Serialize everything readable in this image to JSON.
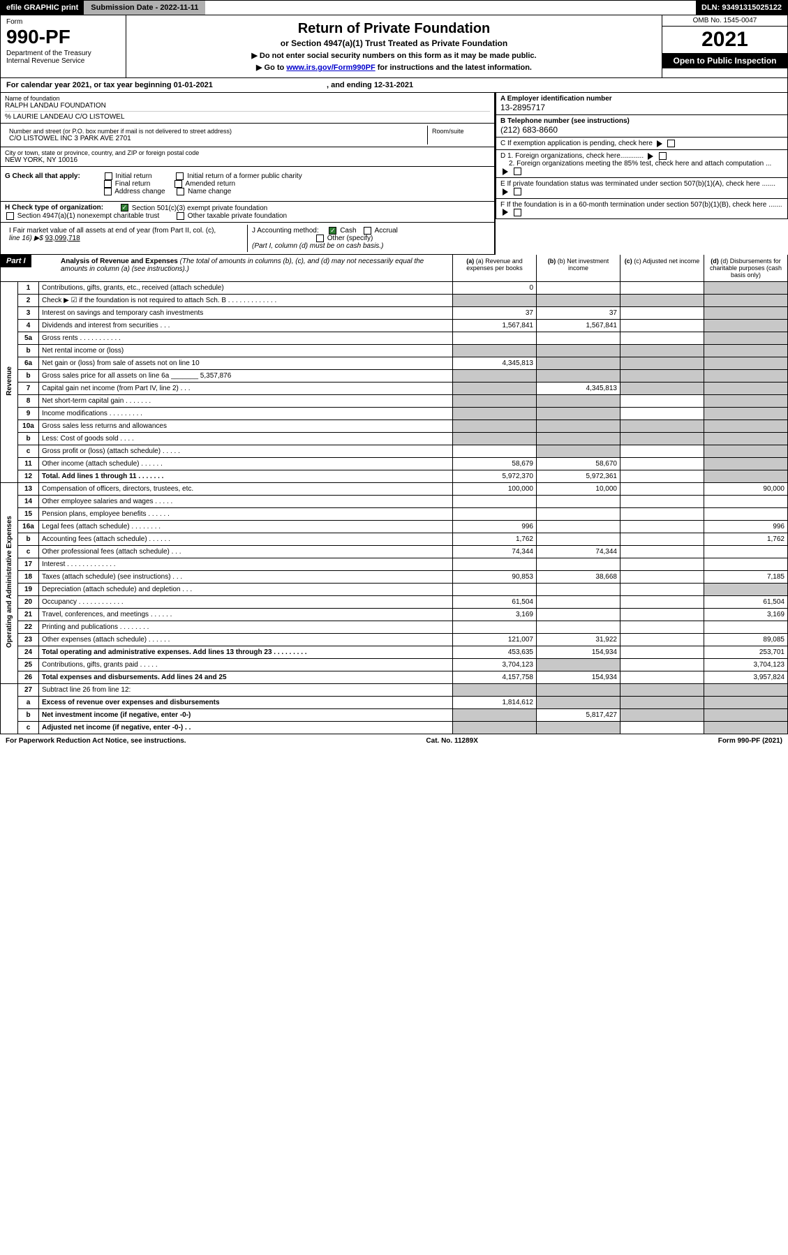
{
  "topbar": {
    "efile": "efile GRAPHIC print",
    "sub_label": "Submission Date - 2022-11-11",
    "dln": "DLN: 93491315025122"
  },
  "header": {
    "form_label": "Form",
    "form_num": "990-PF",
    "dept": "Department of the Treasury\nInternal Revenue Service",
    "title": "Return of Private Foundation",
    "sub": "or Section 4947(a)(1) Trust Treated as Private Foundation",
    "note1": "▶ Do not enter social security numbers on this form as it may be made public.",
    "note2_pre": "▶ Go to ",
    "note2_link": "www.irs.gov/Form990PF",
    "note2_post": " for instructions and the latest information.",
    "omb": "OMB No. 1545-0047",
    "year": "2021",
    "open": "Open to Public Inspection"
  },
  "cal": {
    "text": "For calendar year 2021, or tax year beginning 01-01-2021",
    "ending": ", and ending 12-31-2021"
  },
  "info": {
    "name_lbl": "Name of foundation",
    "name": "RALPH LANDAU FOUNDATION",
    "care": "% LAURIE LANDEAU C/O LISTOWEL",
    "addr_lbl": "Number and street (or P.O. box number if mail is not delivered to street address)",
    "addr": "C/O LISTOWEL INC 3 PARK AVE 2701",
    "room_lbl": "Room/suite",
    "city_lbl": "City or town, state or province, country, and ZIP or foreign postal code",
    "city": "NEW YORK, NY  10016",
    "ein_lbl": "A Employer identification number",
    "ein": "13-2895717",
    "tel_lbl": "B Telephone number (see instructions)",
    "tel": "(212) 683-8660",
    "c_lbl": "C If exemption application is pending, check here",
    "d1": "D 1. Foreign organizations, check here............",
    "d2": "2. Foreign organizations meeting the 85% test, check here and attach computation ...",
    "e": "E If private foundation status was terminated under section 507(b)(1)(A), check here .......",
    "f": "F If the foundation is in a 60-month termination under section 507(b)(1)(B), check here .......",
    "g_lbl": "G Check all that apply:",
    "g_opts": [
      "Initial return",
      "Final return",
      "Address change",
      "Initial return of a former public charity",
      "Amended return",
      "Name change"
    ],
    "h_lbl": "H Check type of organization:",
    "h1": "Section 501(c)(3) exempt private foundation",
    "h2": "Section 4947(a)(1) nonexempt charitable trust",
    "h3": "Other taxable private foundation",
    "i_lbl": "I Fair market value of all assets at end of year (from Part II, col. (c),",
    "i_line": "line 16) ▶$",
    "i_val": "93,099,718",
    "j_lbl": "J Accounting method:",
    "j_cash": "Cash",
    "j_acc": "Accrual",
    "j_other": "Other (specify)",
    "j_note": "(Part I, column (d) must be on cash basis.)"
  },
  "part1": {
    "hdr": "Part I",
    "title": "Analysis of Revenue and Expenses",
    "title_note": "(The total of amounts in columns (b), (c), and (d) may not necessarily equal the amounts in column (a) (see instructions).)",
    "cols": {
      "a": "(a) Revenue and expenses per books",
      "b": "(b) Net investment income",
      "c": "(c) Adjusted net income",
      "d": "(d) Disbursements for charitable purposes (cash basis only)"
    }
  },
  "sections": {
    "rev": "Revenue",
    "exp": "Operating and Administrative Expenses"
  },
  "rows": [
    {
      "ln": "1",
      "desc": "Contributions, gifts, grants, etc., received (attach schedule)",
      "a": "0",
      "b": "",
      "c": "",
      "d": "",
      "sect": "rev",
      "shade_d": true
    },
    {
      "ln": "2",
      "desc": "Check ▶ ☑ if the foundation is not required to attach Sch. B   .   .   .   .   .   .   .   .   .   .   .   .   .",
      "shade_all": true,
      "sect": "rev"
    },
    {
      "ln": "3",
      "desc": "Interest on savings and temporary cash investments",
      "a": "37",
      "b": "37",
      "c": "",
      "d": "",
      "sect": "rev",
      "shade_d": true
    },
    {
      "ln": "4",
      "desc": "Dividends and interest from securities   .   .   .",
      "a": "1,567,841",
      "b": "1,567,841",
      "c": "",
      "d": "",
      "sect": "rev",
      "shade_d": true
    },
    {
      "ln": "5a",
      "desc": "Gross rents   .   .   .   .   .   .   .   .   .   .   .",
      "a": "",
      "b": "",
      "c": "",
      "d": "",
      "sect": "rev",
      "shade_d": true
    },
    {
      "ln": "b",
      "desc": "Net rental income or (loss)",
      "shade_all": true,
      "sect": "rev"
    },
    {
      "ln": "6a",
      "desc": "Net gain or (loss) from sale of assets not on line 10",
      "a": "4,345,813",
      "b": "",
      "c": "",
      "d": "",
      "sect": "rev",
      "shade_bcd": true
    },
    {
      "ln": "b",
      "desc": "Gross sales price for all assets on line 6a _______ 5,357,876",
      "shade_all": true,
      "sect": "rev"
    },
    {
      "ln": "7",
      "desc": "Capital gain net income (from Part IV, line 2)   .   .   .",
      "a": "",
      "b": "4,345,813",
      "c": "",
      "d": "",
      "sect": "rev",
      "shade_a": true,
      "shade_cd": true
    },
    {
      "ln": "8",
      "desc": "Net short-term capital gain   .   .   .   .   .   .   .",
      "shade_abd": true,
      "sect": "rev"
    },
    {
      "ln": "9",
      "desc": "Income modifications   .   .   .   .   .   .   .   .   .",
      "shade_abd": true,
      "sect": "rev"
    },
    {
      "ln": "10a",
      "desc": "Gross sales less returns and allowances",
      "shade_all": true,
      "sect": "rev"
    },
    {
      "ln": "b",
      "desc": "Less: Cost of goods sold   .   .   .   .",
      "shade_all": true,
      "sect": "rev"
    },
    {
      "ln": "c",
      "desc": "Gross profit or (loss) (attach schedule)   .   .   .   .   .",
      "a": "",
      "b": "",
      "c": "",
      "d": "",
      "sect": "rev",
      "shade_bd": true
    },
    {
      "ln": "11",
      "desc": "Other income (attach schedule)   .   .   .   .   .   .",
      "a": "58,679",
      "b": "58,670",
      "c": "",
      "d": "",
      "sect": "rev",
      "shade_d": true
    },
    {
      "ln": "12",
      "desc": "Total. Add lines 1 through 11   .   .   .   .   .   .   .",
      "a": "5,972,370",
      "b": "5,972,361",
      "c": "",
      "d": "",
      "sect": "rev",
      "bold": true,
      "shade_d": true
    },
    {
      "ln": "13",
      "desc": "Compensation of officers, directors, trustees, etc.",
      "a": "100,000",
      "b": "10,000",
      "c": "",
      "d": "90,000",
      "sect": "exp"
    },
    {
      "ln": "14",
      "desc": "Other employee salaries and wages   .   .   .   .   .",
      "a": "",
      "b": "",
      "c": "",
      "d": "",
      "sect": "exp"
    },
    {
      "ln": "15",
      "desc": "Pension plans, employee benefits   .   .   .   .   .   .",
      "a": "",
      "b": "",
      "c": "",
      "d": "",
      "sect": "exp"
    },
    {
      "ln": "16a",
      "desc": "Legal fees (attach schedule)   .   .   .   .   .   .   .   .",
      "a": "996",
      "b": "",
      "c": "",
      "d": "996",
      "sect": "exp"
    },
    {
      "ln": "b",
      "desc": "Accounting fees (attach schedule)   .   .   .   .   .   .",
      "a": "1,762",
      "b": "",
      "c": "",
      "d": "1,762",
      "sect": "exp"
    },
    {
      "ln": "c",
      "desc": "Other professional fees (attach schedule)   .   .   .",
      "a": "74,344",
      "b": "74,344",
      "c": "",
      "d": "",
      "sect": "exp"
    },
    {
      "ln": "17",
      "desc": "Interest   .   .   .   .   .   .   .   .   .   .   .   .   .",
      "a": "",
      "b": "",
      "c": "",
      "d": "",
      "sect": "exp"
    },
    {
      "ln": "18",
      "desc": "Taxes (attach schedule) (see instructions)   .   .   .",
      "a": "90,853",
      "b": "38,668",
      "c": "",
      "d": "7,185",
      "sect": "exp"
    },
    {
      "ln": "19",
      "desc": "Depreciation (attach schedule) and depletion   .   .   .",
      "a": "",
      "b": "",
      "c": "",
      "d": "",
      "sect": "exp",
      "shade_d": true
    },
    {
      "ln": "20",
      "desc": "Occupancy   .   .   .   .   .   .   .   .   .   .   .   .",
      "a": "61,504",
      "b": "",
      "c": "",
      "d": "61,504",
      "sect": "exp"
    },
    {
      "ln": "21",
      "desc": "Travel, conferences, and meetings   .   .   .   .   .   .",
      "a": "3,169",
      "b": "",
      "c": "",
      "d": "3,169",
      "sect": "exp"
    },
    {
      "ln": "22",
      "desc": "Printing and publications   .   .   .   .   .   .   .   .",
      "a": "",
      "b": "",
      "c": "",
      "d": "",
      "sect": "exp"
    },
    {
      "ln": "23",
      "desc": "Other expenses (attach schedule)   .   .   .   .   .   .",
      "a": "121,007",
      "b": "31,922",
      "c": "",
      "d": "89,085",
      "sect": "exp"
    },
    {
      "ln": "24",
      "desc": "Total operating and administrative expenses. Add lines 13 through 23   .   .   .   .   .   .   .   .   .",
      "a": "453,635",
      "b": "154,934",
      "c": "",
      "d": "253,701",
      "sect": "exp",
      "bold": true
    },
    {
      "ln": "25",
      "desc": "Contributions, gifts, grants paid   .   .   .   .   .",
      "a": "3,704,123",
      "b": "",
      "c": "",
      "d": "3,704,123",
      "sect": "exp",
      "shade_b": true
    },
    {
      "ln": "26",
      "desc": "Total expenses and disbursements. Add lines 24 and 25",
      "a": "4,157,758",
      "b": "154,934",
      "c": "",
      "d": "3,957,824",
      "sect": "exp",
      "bold": true
    },
    {
      "ln": "27",
      "desc": "Subtract line 26 from line 12:",
      "shade_all": true,
      "sect": ""
    },
    {
      "ln": "a",
      "desc": "Excess of revenue over expenses and disbursements",
      "a": "1,814,612",
      "b": "",
      "c": "",
      "d": "",
      "sect": "",
      "bold": true,
      "shade_bcd": true
    },
    {
      "ln": "b",
      "desc": "Net investment income (if negative, enter -0-)",
      "a": "",
      "b": "5,817,427",
      "c": "",
      "d": "",
      "sect": "",
      "bold": true,
      "shade_a": true,
      "shade_cd": true
    },
    {
      "ln": "c",
      "desc": "Adjusted net income (if negative, enter -0-)   .   .",
      "a": "",
      "b": "",
      "c": "",
      "d": "",
      "sect": "",
      "bold": true,
      "shade_abd": true
    }
  ],
  "footer": {
    "left": "For Paperwork Reduction Act Notice, see instructions.",
    "mid": "Cat. No. 11289X",
    "right": "Form 990-PF (2021)"
  },
  "colors": {
    "shade": "#c8c8c8",
    "link": "#0000cc",
    "check": "#2e7d32"
  }
}
